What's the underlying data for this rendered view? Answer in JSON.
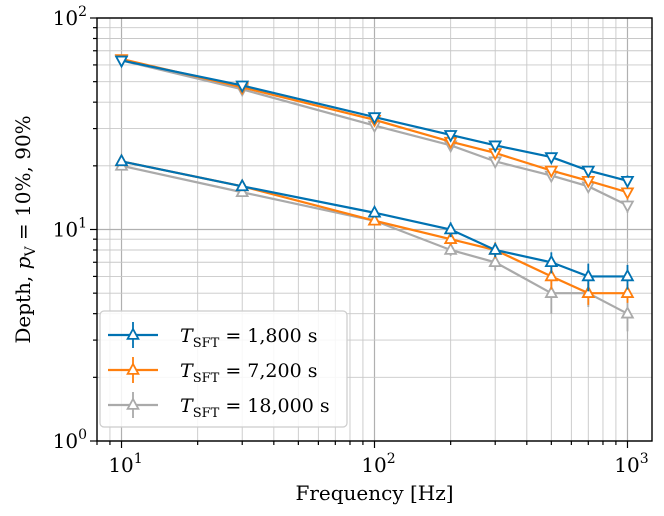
{
  "chart_data": {
    "type": "line",
    "x_scale": "log",
    "y_scale": "log",
    "xlabel": "Frequency [Hz]",
    "ylabel_parts": {
      "main": "Depth, ",
      "sym": "p",
      "sub": "V",
      "rest": " = 10%, 90%"
    },
    "xlim": [
      8,
      1250
    ],
    "ylim": [
      1,
      100
    ],
    "x_ticks": [
      {
        "value": 10,
        "base": "10",
        "exp": "1"
      },
      {
        "value": 100,
        "base": "10",
        "exp": "2"
      },
      {
        "value": 1000,
        "base": "10",
        "exp": "3"
      }
    ],
    "y_ticks": [
      {
        "value": 1,
        "base": "10",
        "exp": "0"
      },
      {
        "value": 10,
        "base": "10",
        "exp": "1"
      },
      {
        "value": 100,
        "base": "10",
        "exp": "2"
      }
    ],
    "grid": "both",
    "legend_position": "lower-left",
    "x": [
      10,
      30,
      100,
      200,
      300,
      500,
      700,
      1000
    ],
    "series": [
      {
        "name": "T_SFT = 1,800 s",
        "legend": {
          "sym": "T",
          "sub": "SFT",
          "rest": " = 1,800 s"
        },
        "color": "#0072b2",
        "p10": [
          21,
          16,
          12,
          10,
          8,
          7,
          6,
          6
        ],
        "p10_err": [
          0.4,
          0.4,
          0.6,
          0.8,
          0.6,
          0.8,
          0.9,
          0.8
        ],
        "p90": [
          63,
          48,
          34,
          28,
          25,
          22,
          19,
          17
        ],
        "p90_err": [
          1.0,
          1.0,
          1.0,
          0.8,
          1.0,
          0.8,
          0.8,
          1.0
        ]
      },
      {
        "name": "T_SFT = 7,200 s",
        "legend": {
          "sym": "T",
          "sub": "SFT",
          "rest": " = 7,200 s"
        },
        "color": "#ff7f0e",
        "p10": [
          21,
          16,
          11,
          9,
          8,
          6,
          5,
          5
        ],
        "p10_err": [
          0.4,
          0.4,
          0.5,
          0.6,
          0.7,
          0.8,
          0.6,
          0.5
        ],
        "p90": [
          64,
          47,
          33,
          26,
          23,
          19,
          17,
          15
        ],
        "p90_err": [
          1.0,
          1.0,
          1.0,
          0.8,
          0.8,
          0.8,
          0.7,
          1.0
        ]
      },
      {
        "name": "T_SFT = 18,000 s",
        "legend": {
          "sym": "T",
          "sub": "SFT",
          "rest": " = 18,000 s"
        },
        "color": "#aaaaaa",
        "p10": [
          20,
          15,
          11,
          8,
          7,
          5,
          5,
          4
        ],
        "p10_err": [
          0.5,
          0.5,
          0.4,
          0.5,
          0.6,
          1.0,
          0.7,
          0.7
        ],
        "p90": [
          63,
          46,
          31,
          25,
          21,
          18,
          16,
          13
        ],
        "p90_err": [
          1.0,
          1.0,
          0.8,
          0.8,
          0.8,
          0.8,
          0.8,
          1.0
        ]
      }
    ]
  }
}
